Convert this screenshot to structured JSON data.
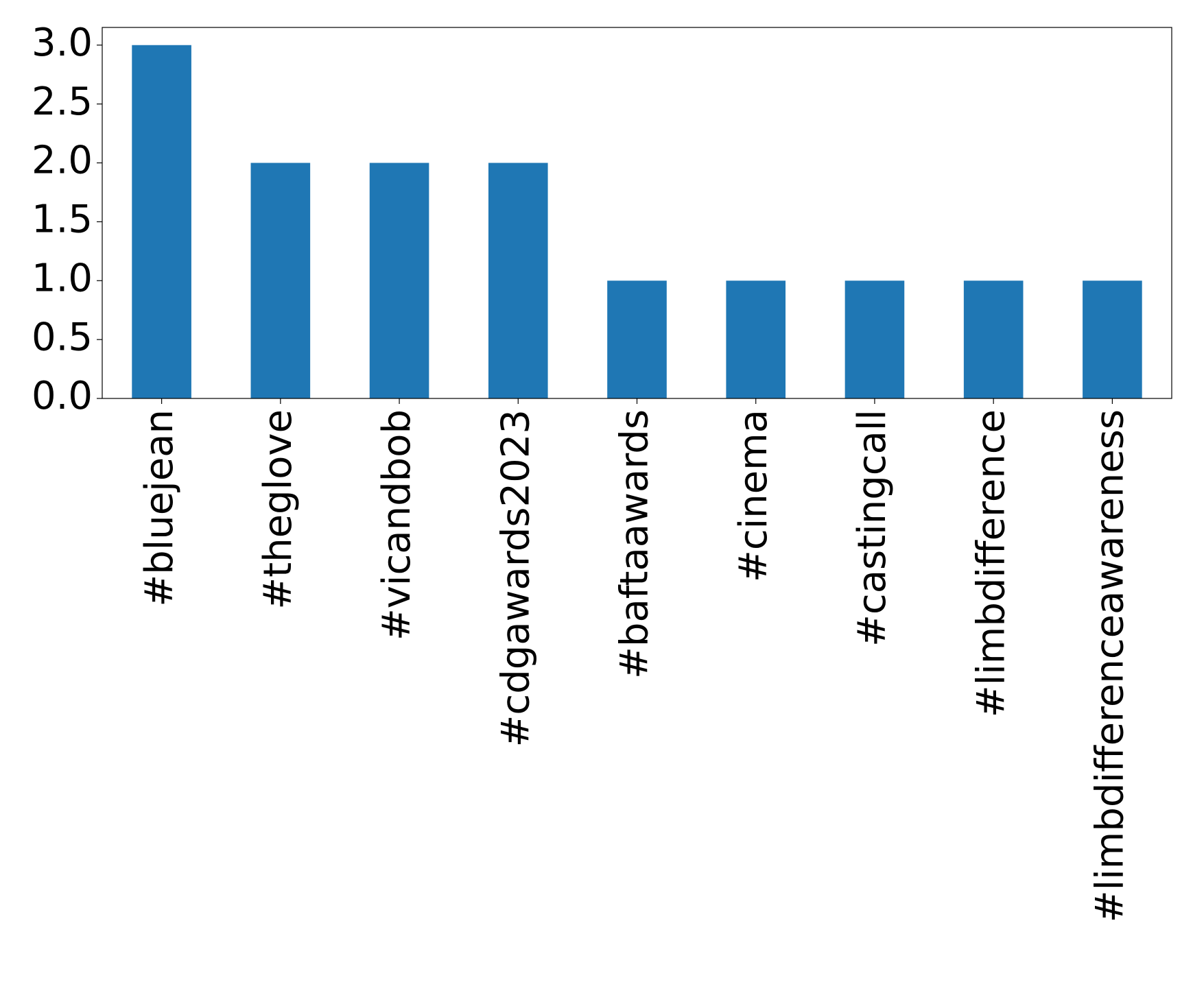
{
  "chart_data": {
    "type": "bar",
    "categories": [
      "#bluejean",
      "#theglove",
      "#vicandbob",
      "#cdgawards2023",
      "#baftaawards",
      "#cinema",
      "#castingcall",
      "#limbdifference",
      "#limbdifferenceawareness"
    ],
    "values": [
      3,
      2,
      2,
      2,
      1,
      1,
      1,
      1,
      1
    ],
    "color": "#1f77b4",
    "ylim": [
      0,
      3.15
    ],
    "yticks": [
      {
        "value": 0,
        "label": "0.0"
      },
      {
        "value": 0.5,
        "label": "0.5"
      },
      {
        "value": 1,
        "label": "1.0"
      },
      {
        "value": 1.5,
        "label": "1.5"
      },
      {
        "value": 2,
        "label": "2.0"
      },
      {
        "value": 2.5,
        "label": "2.5"
      },
      {
        "value": 3,
        "label": "3.0"
      }
    ],
    "grid": false
  }
}
